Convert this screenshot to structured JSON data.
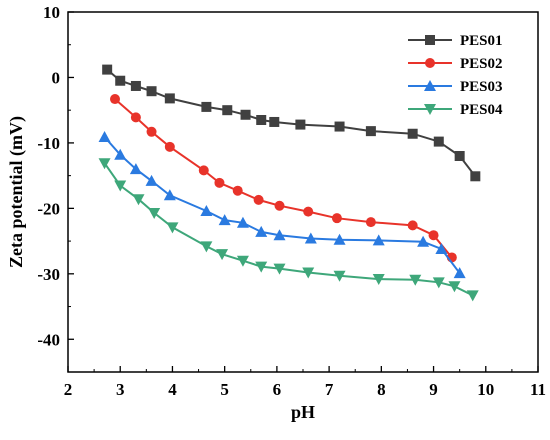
{
  "chart_data": {
    "type": "line",
    "title": "",
    "xlabel": "pH",
    "ylabel": "Zeta potential (mV)",
    "xlim": [
      2,
      11
    ],
    "ylim": [
      -45,
      10
    ],
    "xticks": [
      2,
      3,
      4,
      5,
      6,
      7,
      8,
      9,
      10,
      11
    ],
    "yticks": [
      10,
      0,
      -10,
      -20,
      -30,
      -40
    ],
    "grid": false,
    "legend_position": "top-right",
    "series": [
      {
        "name": "PES01",
        "color": "#404040",
        "marker": "square",
        "x": [
          2.75,
          3.0,
          3.3,
          3.6,
          3.95,
          4.65,
          5.05,
          5.4,
          5.7,
          5.95,
          6.45,
          7.2,
          7.8,
          8.6,
          9.1,
          9.5,
          9.8
        ],
        "y": [
          1.2,
          -0.5,
          -1.3,
          -2.1,
          -3.2,
          -4.5,
          -5.0,
          -5.7,
          -6.5,
          -6.8,
          -7.2,
          -7.5,
          -8.2,
          -8.6,
          -9.8,
          -12.0,
          -15.1
        ]
      },
      {
        "name": "PES02",
        "color": "#e8332a",
        "marker": "circle",
        "x": [
          2.9,
          3.3,
          3.6,
          3.95,
          4.6,
          4.9,
          5.25,
          5.65,
          6.05,
          6.6,
          7.15,
          7.8,
          8.6,
          9.0,
          9.35
        ],
        "y": [
          -3.3,
          -6.1,
          -8.3,
          -10.6,
          -14.2,
          -16.1,
          -17.3,
          -18.7,
          -19.6,
          -20.5,
          -21.5,
          -22.1,
          -22.6,
          -24.1,
          -27.5
        ]
      },
      {
        "name": "PES03",
        "color": "#2a7ae0",
        "marker": "triangle-up",
        "x": [
          2.7,
          3.0,
          3.3,
          3.6,
          3.95,
          4.65,
          5.0,
          5.35,
          5.7,
          6.05,
          6.65,
          7.2,
          7.95,
          8.8,
          9.15,
          9.5
        ],
        "y": [
          -9.1,
          -11.8,
          -14.0,
          -15.8,
          -18.0,
          -20.4,
          -21.8,
          -22.2,
          -23.6,
          -24.1,
          -24.6,
          -24.8,
          -24.9,
          -25.1,
          -26.2,
          -29.9
        ]
      },
      {
        "name": "PES04",
        "color": "#3ea77a",
        "marker": "triangle-down",
        "x": [
          2.7,
          3.0,
          3.35,
          3.65,
          4.0,
          4.65,
          4.95,
          5.35,
          5.7,
          6.05,
          6.6,
          7.2,
          7.95,
          8.65,
          9.1,
          9.4,
          9.75
        ],
        "y": [
          -13.1,
          -16.5,
          -18.6,
          -20.7,
          -22.9,
          -25.8,
          -27.0,
          -28.0,
          -28.9,
          -29.2,
          -29.8,
          -30.3,
          -30.8,
          -30.9,
          -31.3,
          -31.9,
          -33.3
        ]
      }
    ]
  }
}
